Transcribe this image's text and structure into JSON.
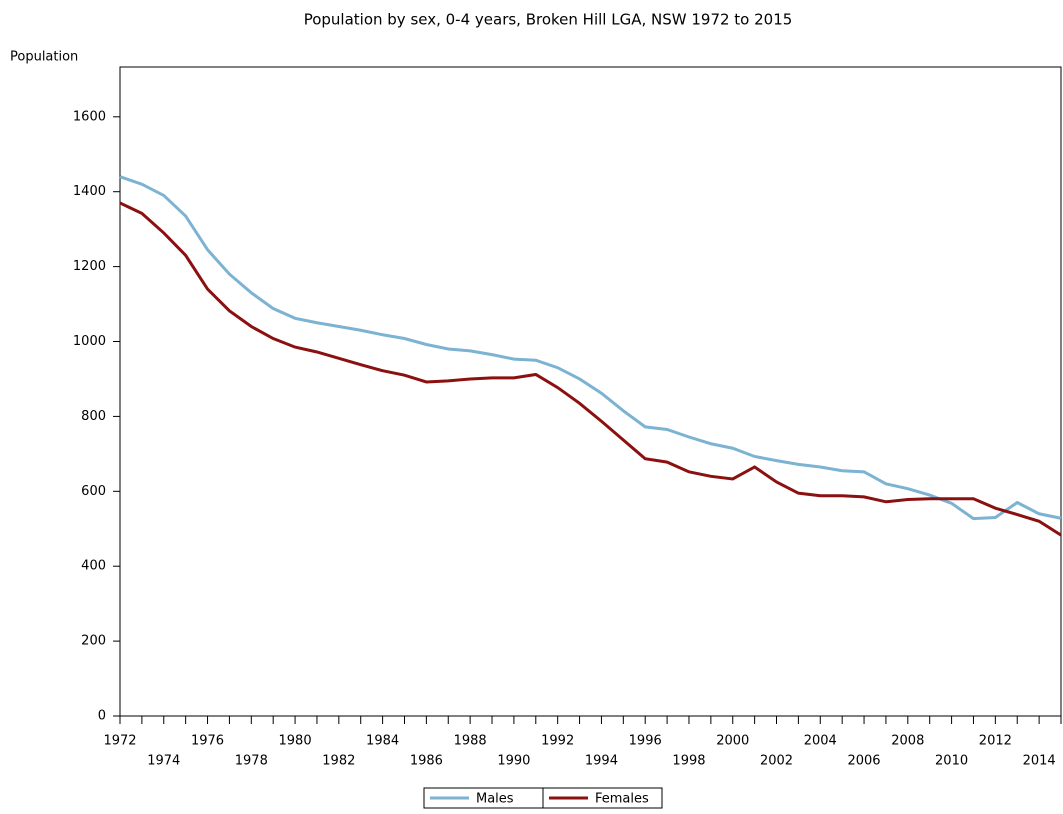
{
  "chart_data": {
    "type": "line",
    "title": "Population by sex, 0-4 years, Broken Hill LGA, NSW 1972 to 2015",
    "y_label": "Population",
    "x": [
      1972,
      1973,
      1974,
      1975,
      1976,
      1977,
      1978,
      1979,
      1980,
      1981,
      1982,
      1983,
      1984,
      1985,
      1986,
      1987,
      1988,
      1989,
      1990,
      1991,
      1992,
      1993,
      1994,
      1995,
      1996,
      1997,
      1998,
      1999,
      2000,
      2001,
      2002,
      2003,
      2004,
      2005,
      2006,
      2007,
      2008,
      2009,
      2010,
      2011,
      2012,
      2013,
      2014,
      2015
    ],
    "series": [
      {
        "name": "Males",
        "color": "#7cb2d2",
        "values": [
          1440,
          1420,
          1390,
          1335,
          1245,
          1180,
          1130,
          1088,
          1062,
          1050,
          1040,
          1030,
          1018,
          1008,
          992,
          980,
          975,
          965,
          953,
          950,
          930,
          900,
          862,
          815,
          772,
          765,
          745,
          727,
          715,
          693,
          682,
          672,
          665,
          655,
          652,
          620,
          607,
          590,
          568,
          527,
          530,
          570,
          540,
          528
        ]
      },
      {
        "name": "Females",
        "color": "#8b1010",
        "values": [
          1370,
          1342,
          1290,
          1230,
          1140,
          1082,
          1040,
          1008,
          985,
          972,
          955,
          938,
          922,
          910,
          892,
          895,
          900,
          903,
          903,
          912,
          877,
          835,
          787,
          737,
          687,
          678,
          652,
          640,
          633,
          665,
          625,
          595,
          588,
          588,
          585,
          572,
          578,
          580,
          580,
          580,
          555,
          538,
          520,
          483
        ]
      }
    ],
    "xlim": [
      1972,
      2015
    ],
    "xticks": [
      1972,
      1974,
      1976,
      1978,
      1980,
      1982,
      1984,
      1986,
      1988,
      1990,
      1992,
      1994,
      1996,
      1998,
      2000,
      2002,
      2004,
      2006,
      2008,
      2010,
      2012,
      2014
    ],
    "xminorticks": [
      1973,
      1975,
      1977,
      1979,
      1981,
      1983,
      1985,
      1987,
      1989,
      1991,
      1993,
      1995,
      1997,
      1999,
      2001,
      2003,
      2005,
      2007,
      2009,
      2011,
      2013,
      2015
    ],
    "ylim": [
      0,
      1733
    ],
    "yticks": [
      0,
      200,
      400,
      600,
      800,
      1000,
      1200,
      1400,
      1600
    ],
    "legend": "bottom"
  }
}
